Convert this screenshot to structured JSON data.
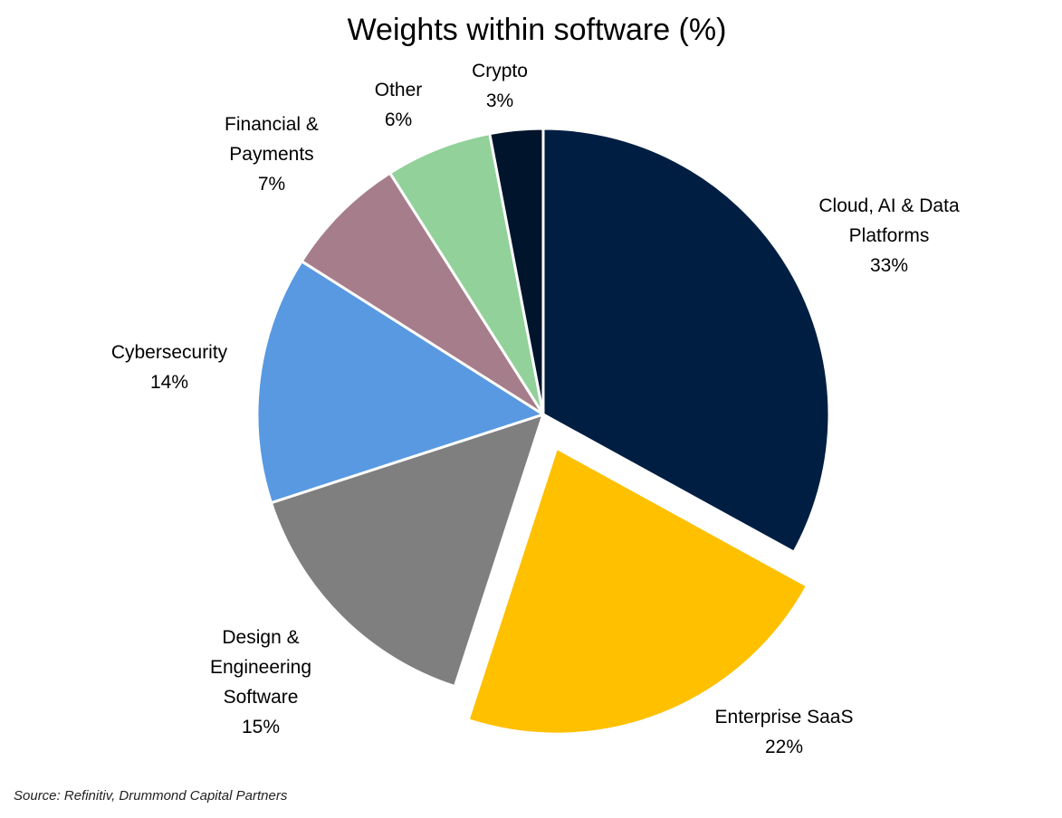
{
  "chart_data": {
    "type": "pie",
    "title": "Weights within software (%)",
    "source": "Source: Refinitiv, Drummond Capital Partners",
    "slices": [
      {
        "label": "Cloud, AI & Data\nPlatforms",
        "value": 33,
        "value_label": "33%",
        "color": "#001E42",
        "exploded": false
      },
      {
        "label": "Enterprise SaaS",
        "value": 22,
        "value_label": "22%",
        "color": "#FFC000",
        "exploded": true
      },
      {
        "label": "Design &\nEngineering\nSoftware",
        "value": 15,
        "value_label": "15%",
        "color": "#7F7F7F",
        "exploded": false
      },
      {
        "label": "Cybersecurity",
        "value": 14,
        "value_label": "14%",
        "color": "#5899E2",
        "exploded": false
      },
      {
        "label": "Financial &\nPayments",
        "value": 7,
        "value_label": "7%",
        "color": "#A67D8B",
        "exploded": false
      },
      {
        "label": "Other",
        "value": 6,
        "value_label": "6%",
        "color": "#92D19A",
        "exploded": false
      },
      {
        "label": "Crypto",
        "value": 3,
        "value_label": "3%",
        "color": "#00142C",
        "exploded": false
      }
    ]
  }
}
